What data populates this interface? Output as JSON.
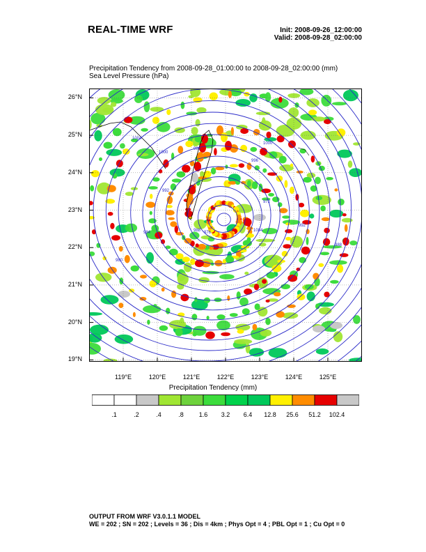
{
  "header": {
    "title": "REAL-TIME WRF",
    "init": "Init: 2008-09-26_12:00:00",
    "valid": "Valid: 2008-09-28_02:00:00"
  },
  "subtitle": {
    "line1": "Precipitation Tendency from 2008-09-28_01:00:00 to 2008-09-28_02:00:00   (mm)",
    "line2": "Sea Level Pressure   (hPa)"
  },
  "axes": {
    "lat_labels": [
      "26°N",
      "25°N",
      "24°N",
      "23°N",
      "22°N",
      "21°N",
      "20°N",
      "19°N"
    ],
    "lat_values": [
      26,
      25,
      24,
      23,
      22,
      21,
      20,
      19
    ],
    "lon_labels": [
      "119°E",
      "120°E",
      "121°E",
      "122°E",
      "123°E",
      "124°E",
      "125°E"
    ],
    "lon_values": [
      119,
      120,
      121,
      122,
      123,
      124,
      125
    ],
    "lat_range": [
      18.95,
      26.25
    ],
    "lon_range": [
      118.0,
      126.0
    ]
  },
  "pressure_labels": [
    "1004",
    "1000",
    "996",
    "992",
    "988",
    "984",
    "980",
    "976",
    "972",
    "1004",
    "1000",
    "996",
    "992",
    "988"
  ],
  "storm_center": {
    "lon": 121.95,
    "lat": 22.75
  },
  "legend": {
    "title": "Precipitation Tendency  (mm)",
    "values": [
      ".1",
      ".2",
      ".4",
      ".8",
      "1.6",
      "3.2",
      "6.4",
      "12.8",
      "25.6",
      "51.2",
      "102.4"
    ],
    "colors": [
      "#ffffff",
      "#ffffff",
      "#c8c8c8",
      "#a0e632",
      "#6ed23c",
      "#3cdc3c",
      "#00d24b",
      "#00c85a",
      "#fff000",
      "#ff8c00",
      "#e60000",
      "#c8c8c8"
    ]
  },
  "colors": {
    "contour": "#2828c8",
    "coast": "#000000",
    "light_green": "#a0e632",
    "mid_green": "#3cdc3c",
    "dark_green": "#00c85a",
    "yellow": "#fff000",
    "orange": "#ff8c00",
    "red": "#e60000",
    "gray": "#c8c8c8"
  },
  "footer": {
    "line1": "OUTPUT FROM WRF V3.0.1.1 MODEL",
    "line2": "WE = 202 ; SN = 202 ; Levels = 36 ; Dis = 4km ; Phys Opt = 4 ; PBL Opt = 1 ; Cu Opt = 0"
  }
}
